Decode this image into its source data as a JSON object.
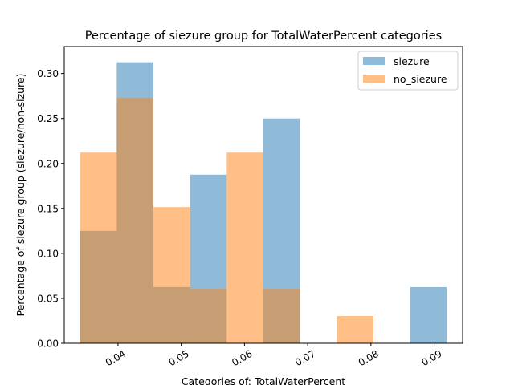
{
  "chart_data": {
    "type": "bar",
    "title": "Percentage of siezure group for TotalWaterPercent categories",
    "xlabel": "Categories of: TotalWaterPercent",
    "ylabel": "Percentage of siezure group (siezure/non-sizure)",
    "xlim": [
      0.0315,
      0.0945
    ],
    "ylim": [
      0,
      0.33
    ],
    "bin_edges": [
      0.034,
      0.0398,
      0.0456,
      0.0514,
      0.0572,
      0.063,
      0.0688,
      0.0746,
      0.0804,
      0.0862,
      0.092
    ],
    "x_ticks": [
      0.04,
      0.05,
      0.06,
      0.07,
      0.08,
      0.09
    ],
    "x_tick_labels": [
      "0.04",
      "0.05",
      "0.06",
      "0.07",
      "0.08",
      "0.09"
    ],
    "y_ticks": [
      0.0,
      0.05,
      0.1,
      0.15,
      0.2,
      0.25,
      0.3
    ],
    "y_tick_labels": [
      "0.00",
      "0.05",
      "0.10",
      "0.15",
      "0.20",
      "0.25",
      "0.30"
    ],
    "grid": false,
    "legend_position": "top-right",
    "series": [
      {
        "name": "siezure",
        "color": "#1f77b4",
        "values": [
          0.125,
          0.3125,
          0.0625,
          0.1875,
          0.0,
          0.25,
          0.0,
          0.0,
          0.0,
          0.0625
        ]
      },
      {
        "name": "no_siezure",
        "color": "#ff7f0e",
        "values": [
          0.2121,
          0.2727,
          0.1515,
          0.0606,
          0.2121,
          0.0606,
          0.0,
          0.0303,
          0.0,
          0.0
        ]
      }
    ]
  }
}
